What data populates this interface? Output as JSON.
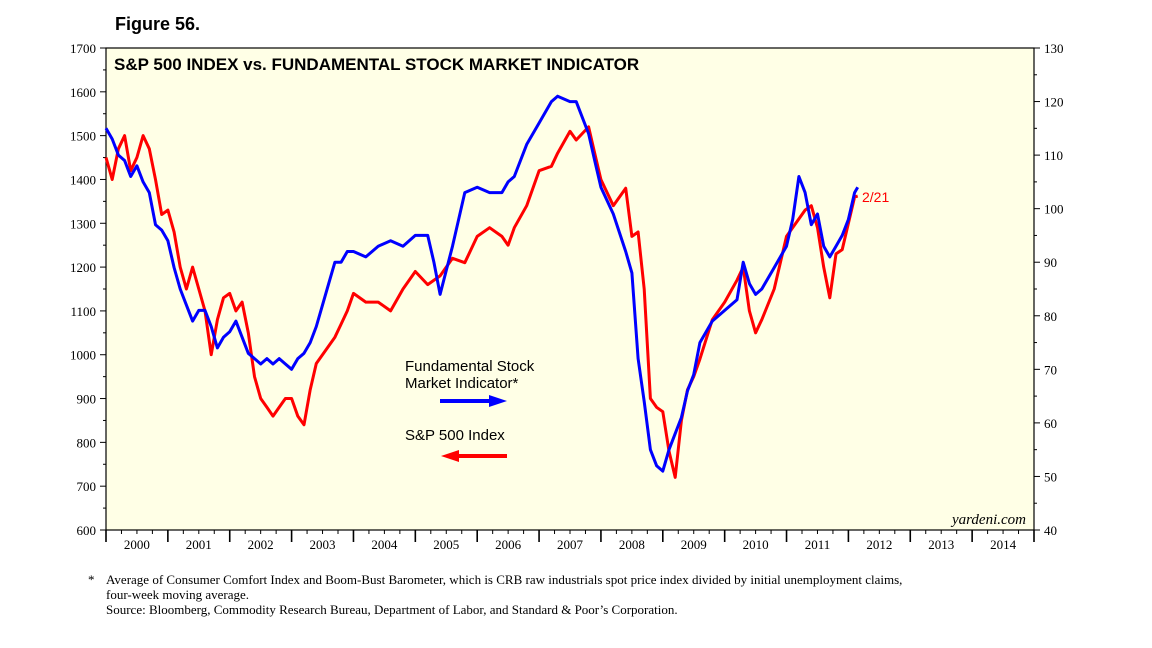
{
  "figure_label": "Figure 56.",
  "chart_data": {
    "type": "line",
    "title": "S&P 500 INDEX vs. FUNDAMENTAL STOCK MARKET INDICATOR",
    "x_tick_labels": [
      "2000",
      "2001",
      "2002",
      "2003",
      "2004",
      "2005",
      "2006",
      "2007",
      "2008",
      "2009",
      "2010",
      "2011",
      "2012",
      "2013",
      "2014"
    ],
    "xlim": [
      2000,
      2015
    ],
    "y_left": {
      "range": [
        600,
        1700
      ],
      "ticks": [
        "600",
        "700",
        "800",
        "900",
        "1000",
        "1100",
        "1200",
        "1300",
        "1400",
        "1500",
        "1600",
        "1700"
      ]
    },
    "y_right": {
      "range": [
        40,
        130
      ],
      "ticks": [
        "40",
        "50",
        "60",
        "70",
        "80",
        "90",
        "100",
        "110",
        "120",
        "130"
      ]
    },
    "colors": {
      "background": "#FFFFE6",
      "sp500": "#FF0000",
      "indicator": "#0000FF",
      "label": "#FF0000"
    },
    "end_label": "2/21",
    "watermark": "yardeni.com",
    "legend": {
      "indicator_line1": "Fundamental Stock",
      "indicator_line2": "Market Indicator*",
      "sp500": "S&P 500 Index"
    },
    "series": [
      {
        "name": "S&P 500 Index",
        "axis": "left",
        "color": "#FF0000",
        "x": [
          2000.0,
          2000.1,
          2000.2,
          2000.3,
          2000.4,
          2000.5,
          2000.6,
          2000.7,
          2000.8,
          2000.9,
          2001.0,
          2001.1,
          2001.2,
          2001.3,
          2001.4,
          2001.5,
          2001.6,
          2001.7,
          2001.8,
          2001.9,
          2002.0,
          2002.1,
          2002.2,
          2002.3,
          2002.4,
          2002.5,
          2002.6,
          2002.7,
          2002.8,
          2002.9,
          2003.0,
          2003.1,
          2003.2,
          2003.3,
          2003.4,
          2003.5,
          2003.6,
          2003.7,
          2003.8,
          2003.9,
          2004.0,
          2004.2,
          2004.4,
          2004.6,
          2004.8,
          2005.0,
          2005.2,
          2005.4,
          2005.6,
          2005.8,
          2006.0,
          2006.2,
          2006.4,
          2006.5,
          2006.6,
          2006.8,
          2007.0,
          2007.2,
          2007.3,
          2007.5,
          2007.6,
          2007.8,
          2007.9,
          2008.0,
          2008.2,
          2008.4,
          2008.5,
          2008.6,
          2008.7,
          2008.8,
          2008.9,
          2009.0,
          2009.1,
          2009.2,
          2009.3,
          2009.4,
          2009.5,
          2009.6,
          2009.8,
          2010.0,
          2010.2,
          2010.3,
          2010.4,
          2010.5,
          2010.6,
          2010.8,
          2011.0,
          2011.2,
          2011.3,
          2011.4,
          2011.5,
          2011.6,
          2011.7,
          2011.8,
          2011.9,
          2012.0,
          2012.1,
          2012.15
        ],
        "values": [
          1450,
          1400,
          1470,
          1500,
          1420,
          1450,
          1500,
          1470,
          1400,
          1320,
          1330,
          1280,
          1200,
          1150,
          1200,
          1150,
          1100,
          1000,
          1080,
          1130,
          1140,
          1100,
          1120,
          1050,
          950,
          900,
          880,
          860,
          880,
          900,
          900,
          860,
          840,
          920,
          980,
          1000,
          1020,
          1040,
          1070,
          1100,
          1140,
          1120,
          1120,
          1100,
          1150,
          1190,
          1160,
          1180,
          1220,
          1210,
          1270,
          1290,
          1270,
          1250,
          1290,
          1340,
          1420,
          1430,
          1460,
          1510,
          1490,
          1520,
          1460,
          1400,
          1340,
          1380,
          1270,
          1280,
          1150,
          900,
          880,
          870,
          780,
          720,
          850,
          920,
          950,
          990,
          1080,
          1120,
          1170,
          1200,
          1100,
          1050,
          1080,
          1150,
          1270,
          1310,
          1330,
          1340,
          1290,
          1200,
          1130,
          1230,
          1240,
          1300,
          1360,
          1362
        ]
      },
      {
        "name": "Fundamental Stock Market Indicator*",
        "axis": "right",
        "color": "#0000FF",
        "x": [
          2000.0,
          2000.1,
          2000.2,
          2000.3,
          2000.4,
          2000.5,
          2000.6,
          2000.7,
          2000.8,
          2000.9,
          2001.0,
          2001.1,
          2001.2,
          2001.3,
          2001.4,
          2001.5,
          2001.6,
          2001.7,
          2001.8,
          2001.9,
          2002.0,
          2002.1,
          2002.2,
          2002.3,
          2002.4,
          2002.5,
          2002.6,
          2002.7,
          2002.8,
          2002.9,
          2003.0,
          2003.1,
          2003.2,
          2003.3,
          2003.4,
          2003.5,
          2003.6,
          2003.7,
          2003.8,
          2003.9,
          2004.0,
          2004.2,
          2004.4,
          2004.6,
          2004.8,
          2005.0,
          2005.2,
          2005.3,
          2005.4,
          2005.6,
          2005.8,
          2006.0,
          2006.2,
          2006.4,
          2006.5,
          2006.6,
          2006.8,
          2007.0,
          2007.2,
          2007.3,
          2007.5,
          2007.6,
          2007.8,
          2007.9,
          2008.0,
          2008.2,
          2008.4,
          2008.5,
          2008.6,
          2008.7,
          2008.8,
          2008.9,
          2009.0,
          2009.1,
          2009.2,
          2009.3,
          2009.4,
          2009.5,
          2009.6,
          2009.8,
          2010.0,
          2010.2,
          2010.3,
          2010.4,
          2010.5,
          2010.6,
          2010.8,
          2011.0,
          2011.1,
          2011.2,
          2011.3,
          2011.4,
          2011.5,
          2011.6,
          2011.7,
          2011.8,
          2011.9,
          2012.0,
          2012.1,
          2012.15
        ],
        "values": [
          115,
          113,
          110,
          109,
          106,
          108,
          105,
          103,
          97,
          96,
          94,
          89,
          85,
          82,
          79,
          81,
          81,
          78,
          74,
          76,
          77,
          79,
          76,
          73,
          72,
          71,
          72,
          71,
          72,
          71,
          70,
          72,
          73,
          75,
          78,
          82,
          86,
          90,
          90,
          92,
          92,
          91,
          93,
          94,
          93,
          95,
          95,
          90,
          84,
          93,
          103,
          104,
          103,
          103,
          105,
          106,
          112,
          116,
          120,
          121,
          120,
          120,
          114,
          109,
          104,
          99,
          92,
          88,
          72,
          64,
          55,
          52,
          51,
          55,
          58,
          61,
          66,
          69,
          75,
          79,
          81,
          83,
          90,
          86,
          84,
          85,
          89,
          93,
          98,
          106,
          103,
          97,
          99,
          93,
          91,
          93,
          95,
          98,
          103,
          104
        ]
      }
    ]
  },
  "footnote": {
    "mark": "*",
    "line1": "Average of Consumer Comfort Index and Boom-Bust Barometer, which is CRB raw industrials spot price index divided by initial unemployment claims,",
    "line2": "four-week moving average.",
    "source": "Source: Bloomberg, Commodity Research Bureau, Department of Labor, and Standard & Poor’s Corporation."
  }
}
